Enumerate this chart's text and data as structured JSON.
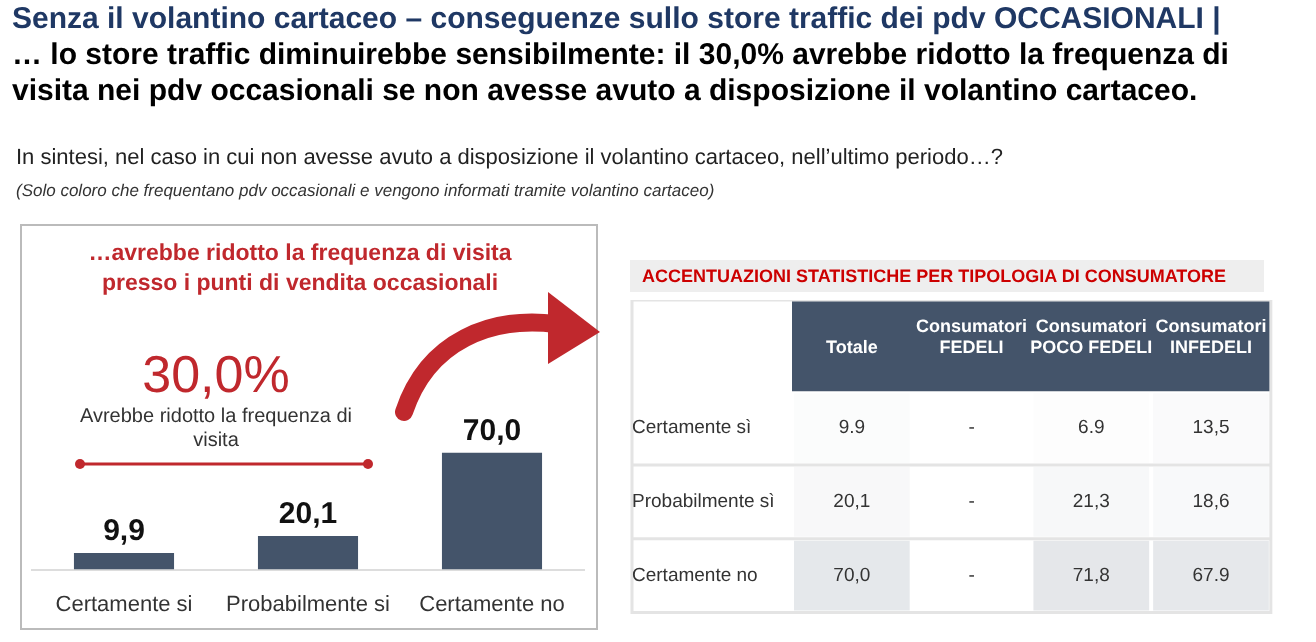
{
  "chart_data": [
    {
      "type": "bar",
      "title": "Senza il volantino cartaceo – conseguenze sullo store traffic dei pdv OCCASIONALI |",
      "subtitle": "… lo store traffic diminuirebbe sensibilmente: il 30,0% avrebbe ridotto la frequenza di visita nei pdv occasionali se non avesse avuto a disposizione il volantino cartaceo.",
      "annotations": [
        "In sintesi, nel caso in cui non avesse avuto a disposizione il volantino cartaceo, nell’ultimo periodo…?",
        "(Solo coloro che frequentano pdv occasionali e vengono informati tramite volantino cartaceo)",
        "…avrebbe ridotto la frequenza di visita presso i punti di vendita occasionali",
        "30,0%",
        "Avrebbe ridotto la frequenza di visita"
      ],
      "categories": [
        "Certamente si",
        "Probabilmente si",
        "Certamente no"
      ],
      "values": [
        9.9,
        20.1,
        70.0
      ],
      "value_labels": [
        "9,9",
        "20,1",
        "70,0"
      ],
      "color": "#44546a",
      "tick_labels": "x"
    },
    {
      "type": "heatmap",
      "title": "ACCENTUAZIONI STATISTICHE PER TIPOLOGIA DI CONSUMATORE",
      "categories": [
        "Totale",
        "Consumatori FEDELI",
        "Consumatori POCO FEDELI",
        "Consumatori INFEDELI"
      ],
      "y_categories": [
        "Certamente sì",
        "Probabilmente sì",
        "Certamente no"
      ],
      "cells": [
        [
          9.9,
          null,
          6.9,
          13.5
        ],
        [
          20.1,
          null,
          21.3,
          18.6
        ],
        [
          70.0,
          null,
          71.8,
          67.9
        ]
      ],
      "cell_labels": [
        [
          "9.9",
          "-",
          "6.9",
          "13,5"
        ],
        [
          "20,1",
          "-",
          "21,3",
          "18,6"
        ],
        [
          "70,0",
          "-",
          "71,8",
          "67.9"
        ]
      ]
    }
  ]
}
